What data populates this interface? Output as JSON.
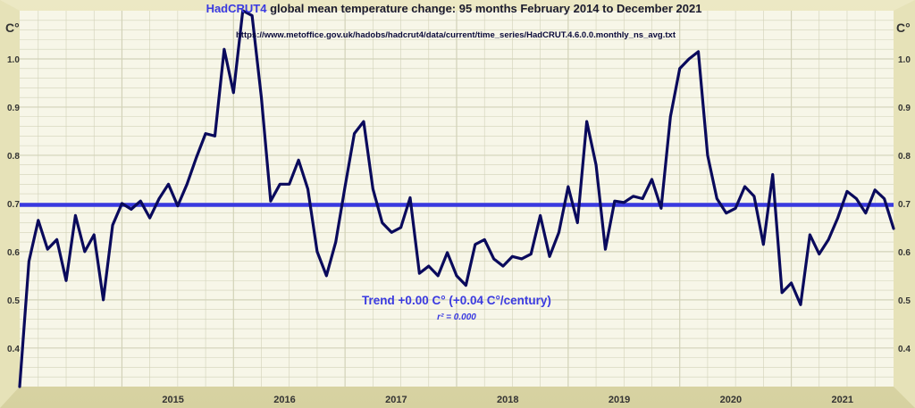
{
  "title": {
    "prefix": "HadCRUT4",
    "rest": " global mean temperature change: 95 months February 2014 to December 2021",
    "url": "https://www.metoffice.gov.uk/hadobs/hadcrut4/data/current/time_series/HadCRUT.4.6.0.0.monthly_ns_avg.txt"
  },
  "trend": {
    "label": "Trend +0.00 C° (+0.04 C°/century)",
    "r2": "r² = 0.000"
  },
  "colors": {
    "data_line": "#0a0a5c",
    "trend_line": "#3a3ae0",
    "title_accent": "#3a3ae0",
    "plot_bg": "#f7f6e8",
    "frame": "#d8d4a0",
    "grid": "#d2d2b8"
  },
  "chart_data": {
    "type": "line",
    "title": "HadCRUT4 global mean temperature change: 95 months February 2014 to December 2021",
    "xlabel": "",
    "ylabel": "C°",
    "ylim": [
      0.32,
      1.1
    ],
    "y_ticks": [
      0.4,
      0.5,
      0.6,
      0.7,
      0.8,
      0.9,
      1.0
    ],
    "y_tick_labels": [
      "0.4",
      "0.5",
      "0.6",
      "0.7",
      "0.8",
      "0.9",
      "1.0"
    ],
    "x_start": "2014-02",
    "x_end": "2021-12",
    "year_labels": [
      "2015",
      "2016",
      "2017",
      "2018",
      "2019",
      "2020",
      "2021"
    ],
    "grid": true,
    "series": [
      {
        "name": "",
        "values": [
          0.32,
          0.58,
          0.665,
          0.605,
          0.625,
          0.54,
          0.675,
          0.6,
          0.635,
          0.5,
          0.655,
          0.7,
          0.688,
          0.705,
          0.67,
          0.71,
          0.74,
          0.695,
          0.74,
          0.795,
          0.845,
          0.84,
          1.02,
          0.93,
          1.1,
          1.09,
          0.92,
          0.705,
          0.74,
          0.74,
          0.79,
          0.73,
          0.6,
          0.55,
          0.62,
          0.735,
          0.845,
          0.87,
          0.73,
          0.66,
          0.64,
          0.65,
          0.712,
          0.555,
          0.57,
          0.55,
          0.598,
          0.55,
          0.53,
          0.615,
          0.625,
          0.585,
          0.57,
          0.59,
          0.585,
          0.595,
          0.675,
          0.59,
          0.64,
          0.735,
          0.66,
          0.87,
          0.78,
          0.605,
          0.705,
          0.702,
          0.715,
          0.71,
          0.75,
          0.69,
          0.88,
          0.98,
          1.0,
          1.015,
          0.8,
          0.71,
          0.68,
          0.69,
          0.735,
          0.715,
          0.615,
          0.76,
          0.515,
          0.535,
          0.49,
          0.635,
          0.595,
          0.625,
          0.67,
          0.725,
          0.71,
          0.68,
          0.728,
          0.71,
          0.648
        ]
      },
      {
        "name": "",
        "kind": "trend",
        "values": [
          0.697,
          0.697
        ]
      }
    ]
  }
}
